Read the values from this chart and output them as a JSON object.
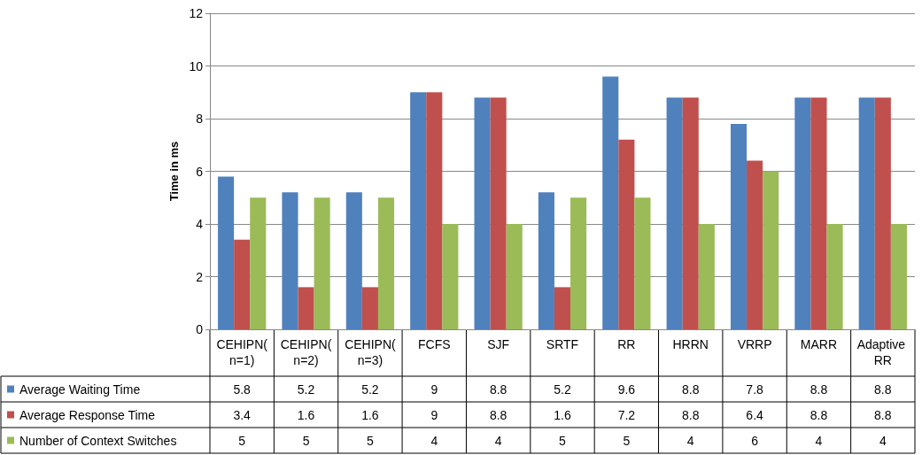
{
  "chart_data": {
    "type": "bar",
    "ylabel": "Time in ms",
    "categories": [
      "CEHIPN(n=1)",
      "CEHIPN(n=2)",
      "CEHIPN(n=3)",
      "FCFS",
      "SJF",
      "SRTF",
      "RR",
      "HRRN",
      "VRRP",
      "MARR",
      "Adaptive RR"
    ],
    "series": [
      {
        "name": "Average Waiting Time",
        "color": "#4f81bd",
        "values": [
          5.8,
          5.2,
          5.2,
          9,
          8.8,
          5.2,
          9.6,
          8.8,
          7.8,
          8.8,
          8.8
        ]
      },
      {
        "name": "Average Response Time",
        "color": "#c0504d",
        "values": [
          3.4,
          1.6,
          1.6,
          9,
          8.8,
          1.6,
          7.2,
          8.8,
          6.4,
          8.8,
          8.8
        ]
      },
      {
        "name": "Number of Context Switches",
        "color": "#9bbb59",
        "values": [
          5,
          5,
          5,
          4,
          4,
          5,
          5,
          4,
          6,
          4,
          4
        ]
      }
    ],
    "ylim": [
      0,
      12
    ],
    "yticks": [
      0,
      2,
      4,
      6,
      8,
      10,
      12
    ],
    "grid": "y",
    "legend": "bottom",
    "data_labels": true
  }
}
